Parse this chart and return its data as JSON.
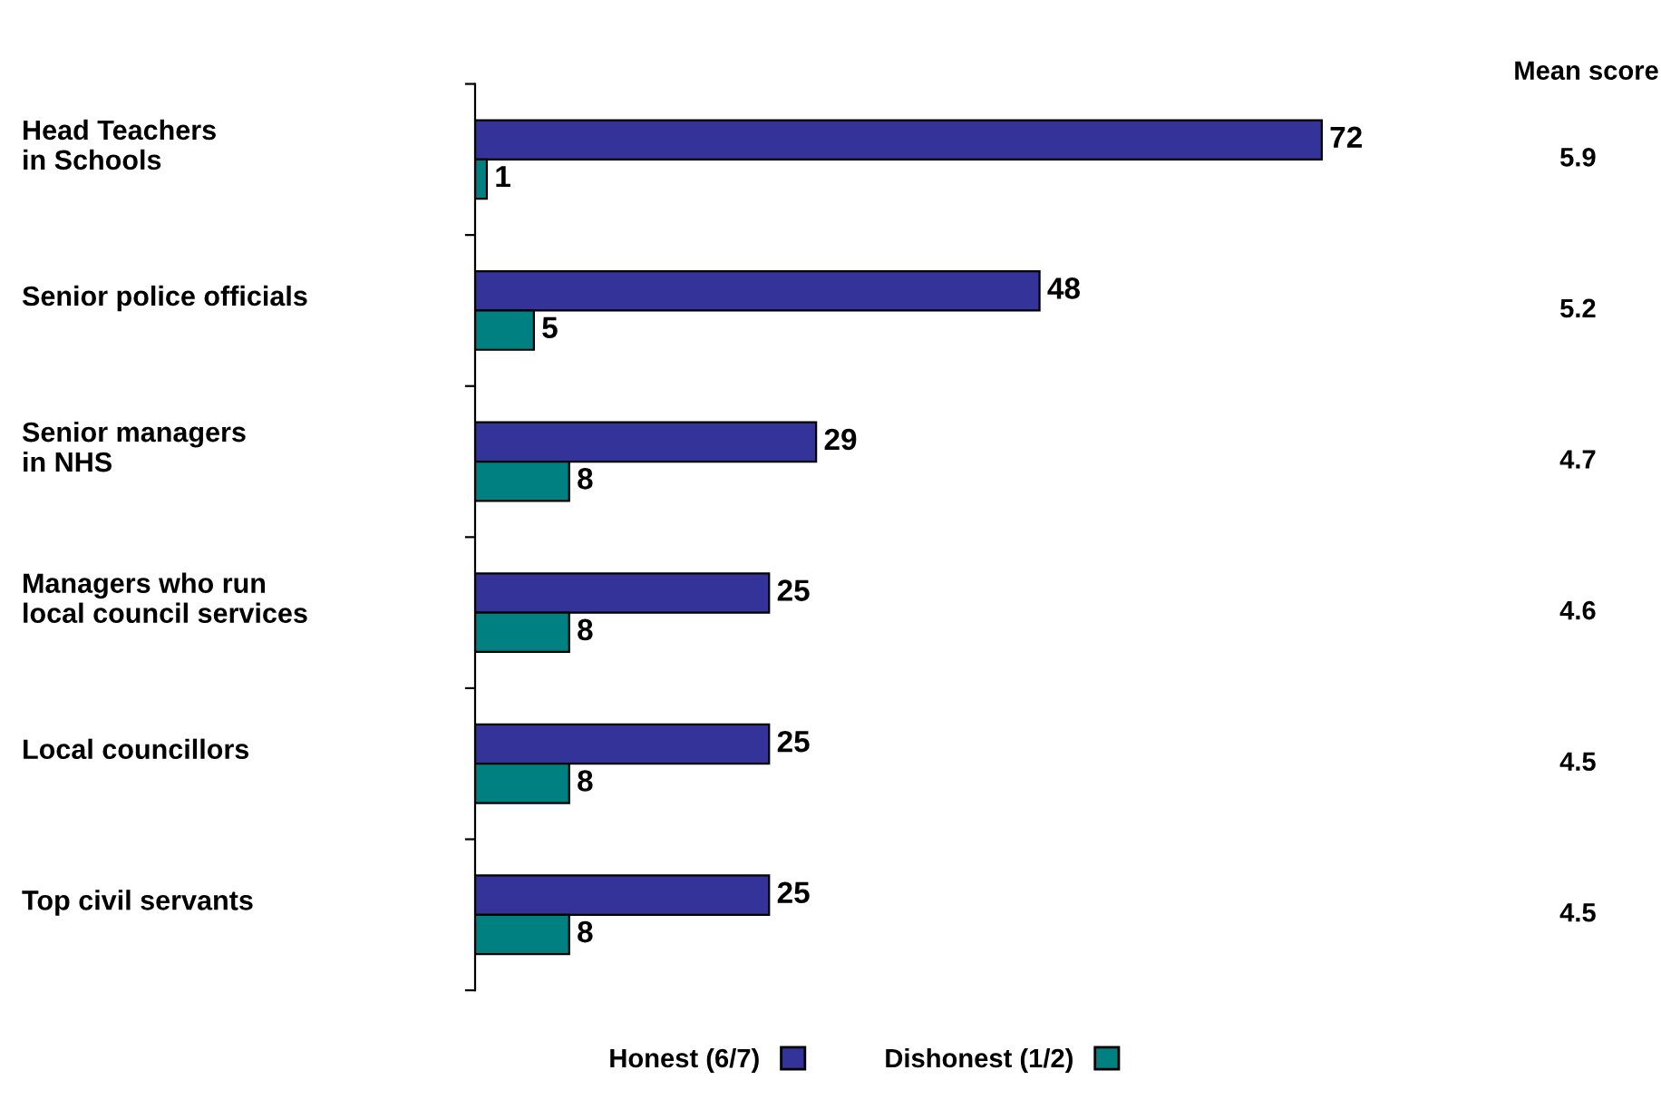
{
  "chart_data": {
    "type": "bar",
    "orientation": "horizontal",
    "categories": [
      "Head Teachers\nin Schools",
      "Senior police officials",
      "Senior managers\nin NHS",
      "Managers who run\nlocal council services",
      "Local councillors",
      "Top civil servants"
    ],
    "series": [
      {
        "name": "Honest (6/7)",
        "color": "#333399",
        "values": [
          72,
          48,
          29,
          25,
          25,
          25
        ]
      },
      {
        "name": "Dishonest (1/2)",
        "color": "#008080",
        "values": [
          1,
          5,
          8,
          8,
          8,
          8
        ]
      }
    ],
    "data_labels": true,
    "legend": "bottom",
    "grid": false,
    "annotations": [
      "Mean score",
      "5.9",
      "5.2",
      "4.7",
      "4.6",
      "4.5",
      "4.5"
    ]
  }
}
